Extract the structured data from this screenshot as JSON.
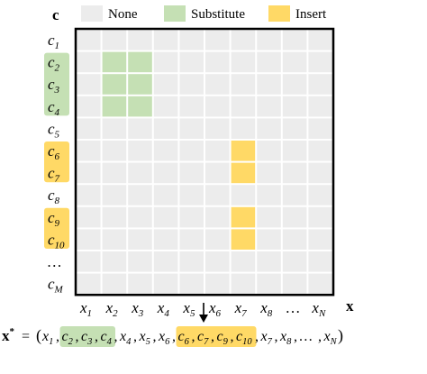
{
  "legend": [
    {
      "label": "None",
      "color": "#ececec"
    },
    {
      "label": "Substitute",
      "color": "#c5e0b4"
    },
    {
      "label": "Insert",
      "color": "#ffd966"
    }
  ],
  "matrix": {
    "row_axis_symbol": "c",
    "col_axis_symbol": "x",
    "rows": [
      {
        "base": "c",
        "sub": "1",
        "highlight": "none"
      },
      {
        "base": "c",
        "sub": "2",
        "highlight": "substitute"
      },
      {
        "base": "c",
        "sub": "3",
        "highlight": "substitute"
      },
      {
        "base": "c",
        "sub": "4",
        "highlight": "substitute"
      },
      {
        "base": "c",
        "sub": "5",
        "highlight": "none"
      },
      {
        "base": "c",
        "sub": "6",
        "highlight": "insert"
      },
      {
        "base": "c",
        "sub": "7",
        "highlight": "insert"
      },
      {
        "base": "c",
        "sub": "8",
        "highlight": "none"
      },
      {
        "base": "c",
        "sub": "9",
        "highlight": "insert"
      },
      {
        "base": "c",
        "sub": "10",
        "highlight": "insert"
      },
      {
        "base": "…",
        "sub": "",
        "highlight": "none"
      },
      {
        "base": "c",
        "sub": "M",
        "highlight": "none"
      }
    ],
    "cols": [
      {
        "base": "x",
        "sub": "1"
      },
      {
        "base": "x",
        "sub": "2"
      },
      {
        "base": "x",
        "sub": "3"
      },
      {
        "base": "x",
        "sub": "4"
      },
      {
        "base": "x",
        "sub": "5"
      },
      {
        "base": "x",
        "sub": "6"
      },
      {
        "base": "x",
        "sub": "7"
      },
      {
        "base": "x",
        "sub": "8"
      },
      {
        "base": "…",
        "sub": ""
      },
      {
        "base": "x",
        "sub": "N"
      }
    ],
    "cells": [
      {
        "row": 1,
        "col": 1,
        "type": "substitute"
      },
      {
        "row": 1,
        "col": 2,
        "type": "substitute"
      },
      {
        "row": 2,
        "col": 1,
        "type": "substitute"
      },
      {
        "row": 2,
        "col": 2,
        "type": "substitute"
      },
      {
        "row": 3,
        "col": 1,
        "type": "substitute"
      },
      {
        "row": 3,
        "col": 2,
        "type": "substitute"
      },
      {
        "row": 5,
        "col": 6,
        "type": "insert"
      },
      {
        "row": 6,
        "col": 6,
        "type": "insert"
      },
      {
        "row": 8,
        "col": 6,
        "type": "insert"
      },
      {
        "row": 9,
        "col": 6,
        "type": "insert"
      }
    ]
  },
  "colors": {
    "none": "#ececec",
    "substitute": "#c5e0b4",
    "insert": "#ffd966",
    "border": "#000000"
  },
  "arrow_icon": "down-arrow-icon",
  "formula": {
    "lhs_base": "x",
    "lhs_sup": "*",
    "equals": "=",
    "open": "(",
    "close": ")",
    "sequence": [
      {
        "base": "x",
        "sub": "1",
        "group": "none"
      },
      {
        "base": "c",
        "sub": "2",
        "group": "substitute"
      },
      {
        "base": "c",
        "sub": "3",
        "group": "substitute"
      },
      {
        "base": "c",
        "sub": "4",
        "group": "substitute"
      },
      {
        "base": "x",
        "sub": "4",
        "group": "none"
      },
      {
        "base": "x",
        "sub": "5",
        "group": "none"
      },
      {
        "base": "x",
        "sub": "6",
        "group": "none"
      },
      {
        "base": "c",
        "sub": "6",
        "group": "insert"
      },
      {
        "base": "c",
        "sub": "7",
        "group": "insert"
      },
      {
        "base": "c",
        "sub": "9",
        "group": "insert"
      },
      {
        "base": "c",
        "sub": "10",
        "group": "insert"
      },
      {
        "base": "x",
        "sub": "7",
        "group": "none"
      },
      {
        "base": "x",
        "sub": "8",
        "group": "none"
      },
      {
        "base": "…",
        "sub": "",
        "group": "none"
      },
      {
        "base": "x",
        "sub": "N",
        "group": "none"
      }
    ]
  }
}
